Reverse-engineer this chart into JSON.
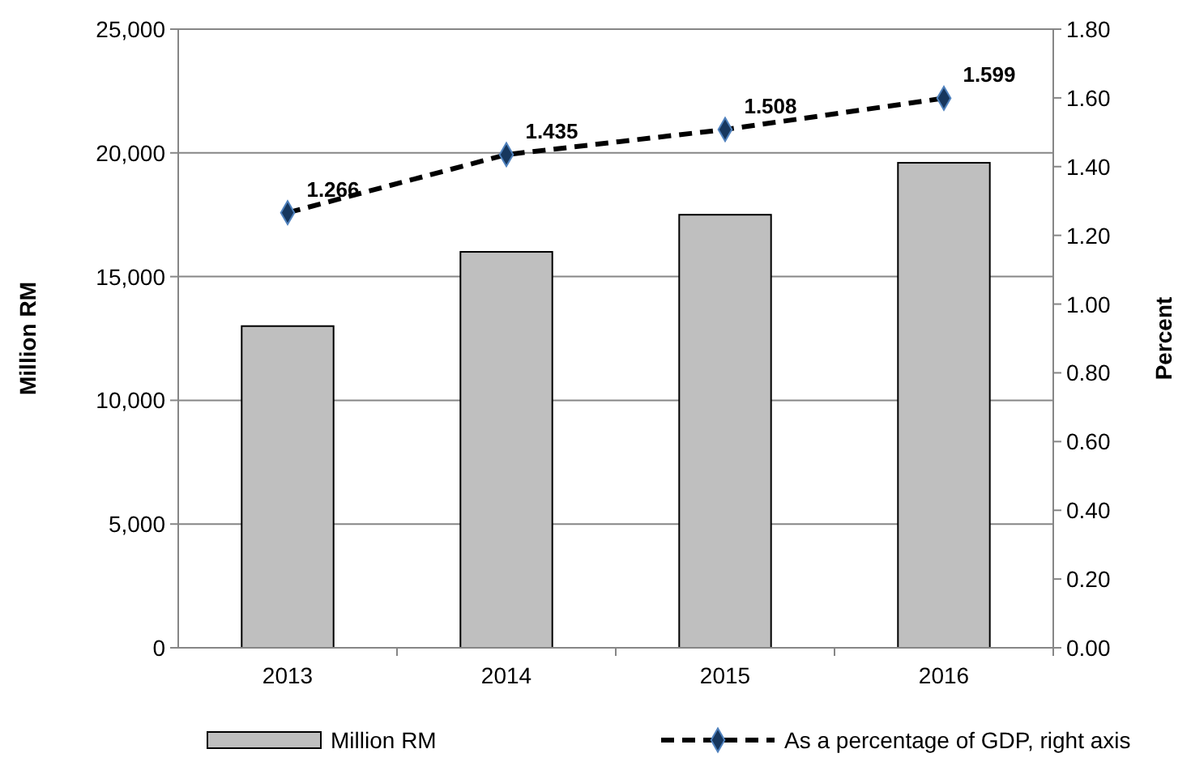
{
  "chart_data": {
    "type": "bar",
    "categories": [
      "2013",
      "2014",
      "2015",
      "2016"
    ],
    "ylabel": "Million RM",
    "y2label": "Percent",
    "series": [
      {
        "name": "Million RM",
        "color": "#bfbfbf",
        "values": [
          13000,
          16000,
          17500,
          19600
        ]
      },
      {
        "name": "As a percentage of GDP, right axis",
        "type": "line",
        "axis": "y2",
        "color": "#000000",
        "values": [
          1.266,
          1.435,
          1.508,
          1.599
        ],
        "value_labels": [
          "1.266",
          "1.435",
          "1.508",
          "1.599"
        ],
        "marker": "diamond",
        "line_style": "dashed"
      }
    ],
    "ylim": [
      0,
      25000
    ],
    "yticks": [
      {
        "value": 0,
        "label": "0"
      },
      {
        "value": 5000,
        "label": "5,000"
      },
      {
        "value": 10000,
        "label": "10,000"
      },
      {
        "value": 15000,
        "label": "15,000"
      },
      {
        "value": 20000,
        "label": "20,000"
      },
      {
        "value": 25000,
        "label": "25,000"
      }
    ],
    "y2lim": [
      0,
      1.8
    ],
    "y2ticks": [
      {
        "value": 0,
        "label": "0.00"
      },
      {
        "value": 0.2,
        "label": "0.20"
      },
      {
        "value": 0.4,
        "label": "0.40"
      },
      {
        "value": 0.6,
        "label": "0.60"
      },
      {
        "value": 0.8,
        "label": "0.80"
      },
      {
        "value": 1,
        "label": "1.00"
      },
      {
        "value": 1.2,
        "label": "1.20"
      },
      {
        "value": 1.4,
        "label": "1.40"
      },
      {
        "value": 1.6,
        "label": "1.60"
      },
      {
        "value": 1.8,
        "label": "1.80"
      }
    ],
    "grid": "y",
    "legend": "bottom"
  }
}
